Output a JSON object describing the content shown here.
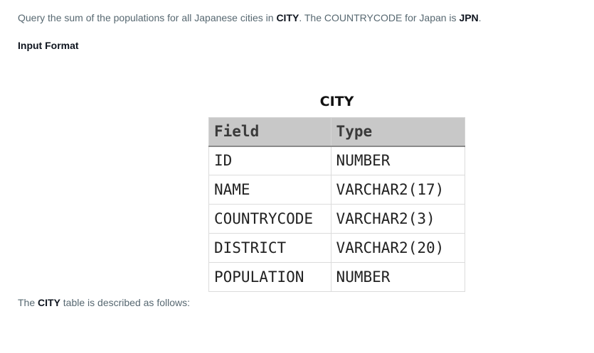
{
  "problem": {
    "part1": "Query the sum of the populations for all Japanese cities in ",
    "table_name": "CITY",
    "part2": ". The COUNTRYCODE for Japan is ",
    "country_code": "JPN",
    "part3": "."
  },
  "input_format": {
    "heading": "Input Format"
  },
  "schema": {
    "caption": "CITY",
    "headers": [
      "Field",
      "Type"
    ],
    "rows": [
      {
        "field": "ID",
        "type": "NUMBER"
      },
      {
        "field": "NAME",
        "type": "VARCHAR2(17)"
      },
      {
        "field": "COUNTRYCODE",
        "type": "VARCHAR2(3)"
      },
      {
        "field": "DISTRICT",
        "type": "VARCHAR2(20)"
      },
      {
        "field": "POPULATION",
        "type": "NUMBER"
      }
    ]
  },
  "description": {
    "prefix": "The ",
    "table_name": "CITY",
    "suffix": " table is described as follows:"
  }
}
